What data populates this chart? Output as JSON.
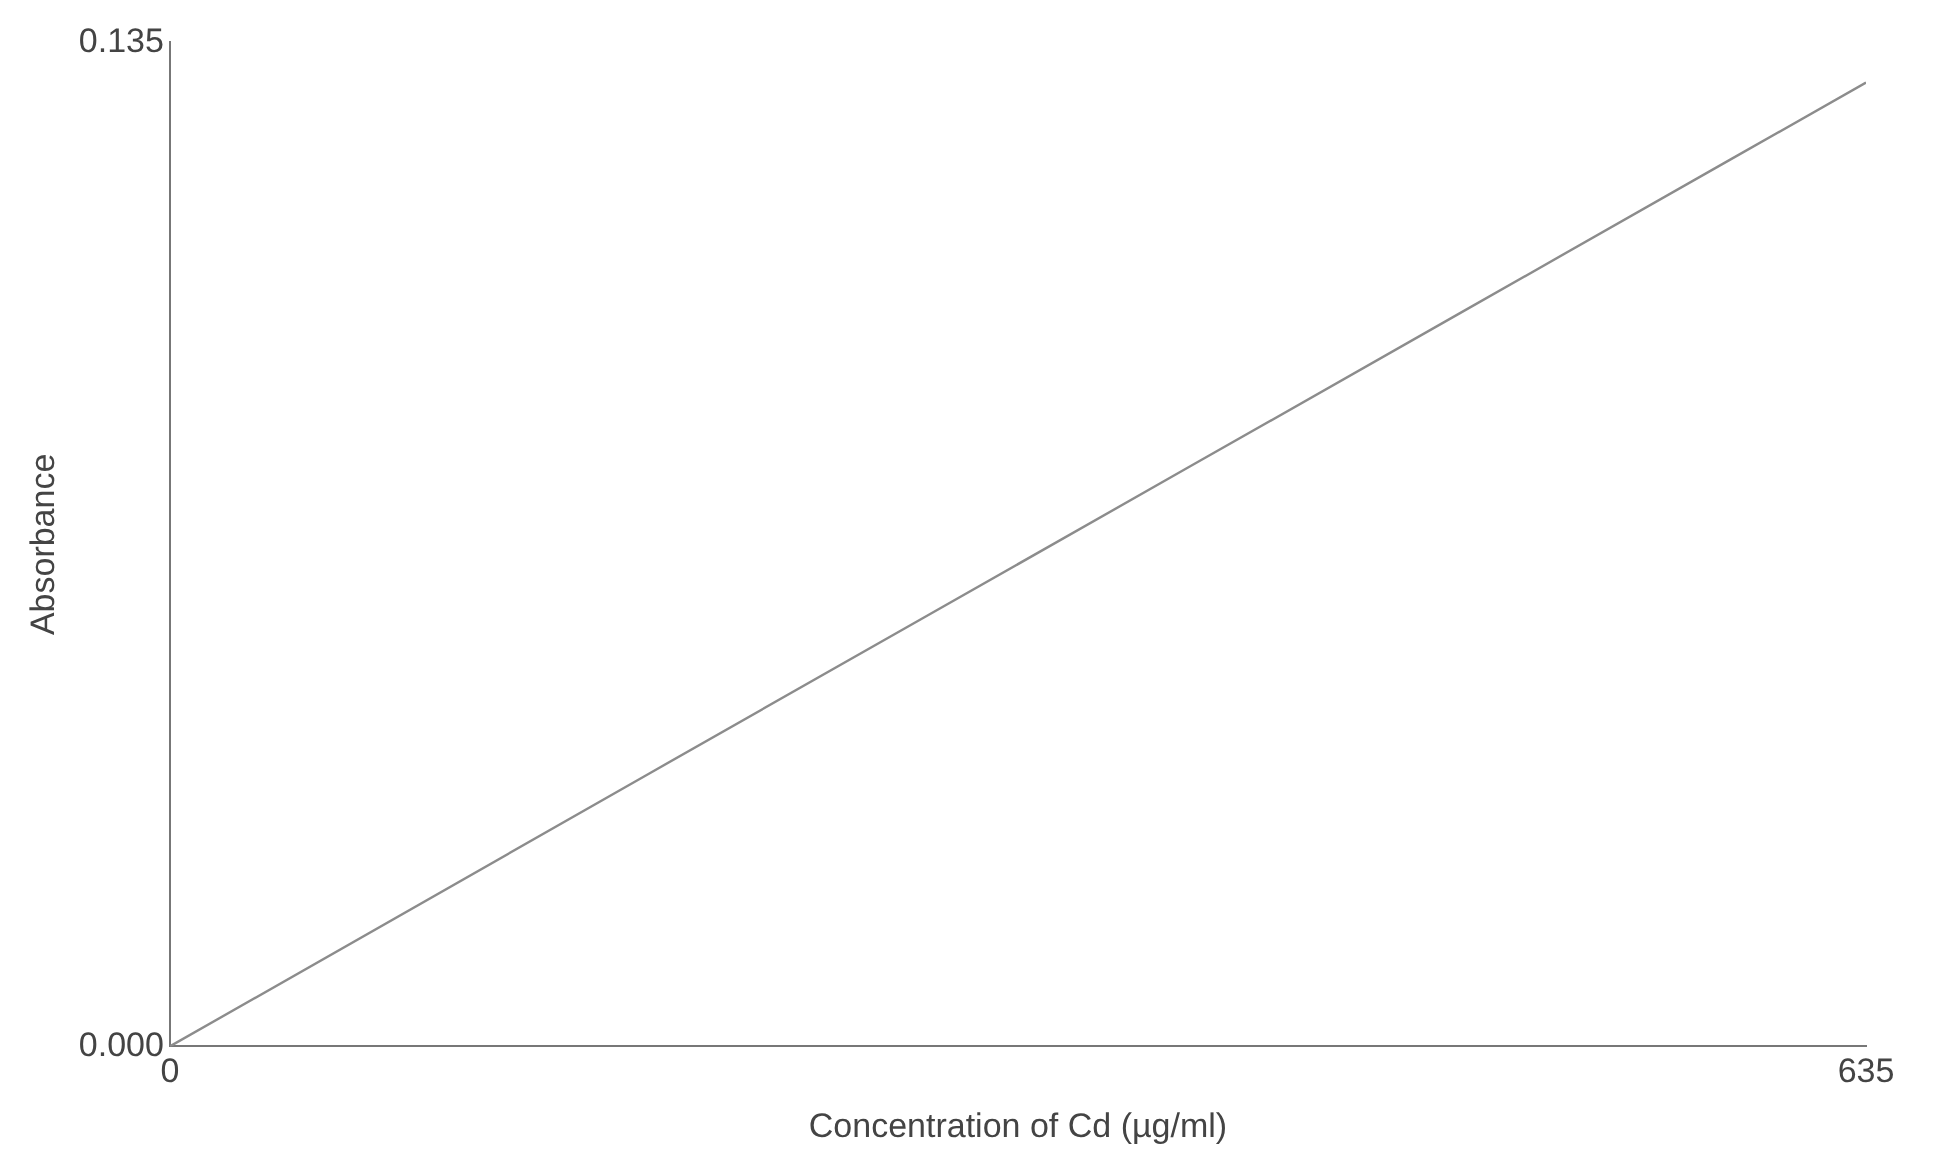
{
  "chart_data": {
    "type": "line",
    "xlabel": "Concentration of Cd (µg/ml)",
    "ylabel": "Absorbance",
    "x": [
      0,
      179,
      281,
      382,
      483,
      584,
      635
    ],
    "series": [
      {
        "color": "#8c8c8c",
        "values": [
          0,
          0.0366,
          0.0574,
          0.078,
          0.0986,
          0.1192,
          0.1296
        ]
      }
    ],
    "xlim": [
      0,
      635
    ],
    "xticks": [
      0,
      635
    ],
    "ylim": [
      0,
      0.135
    ],
    "yticks": [
      {
        "value": 0,
        "label": "0.000"
      },
      {
        "value": 0.135,
        "label": "0.135"
      }
    ],
    "grid": false,
    "legend": false,
    "marker": "none",
    "line_style": "solid"
  }
}
